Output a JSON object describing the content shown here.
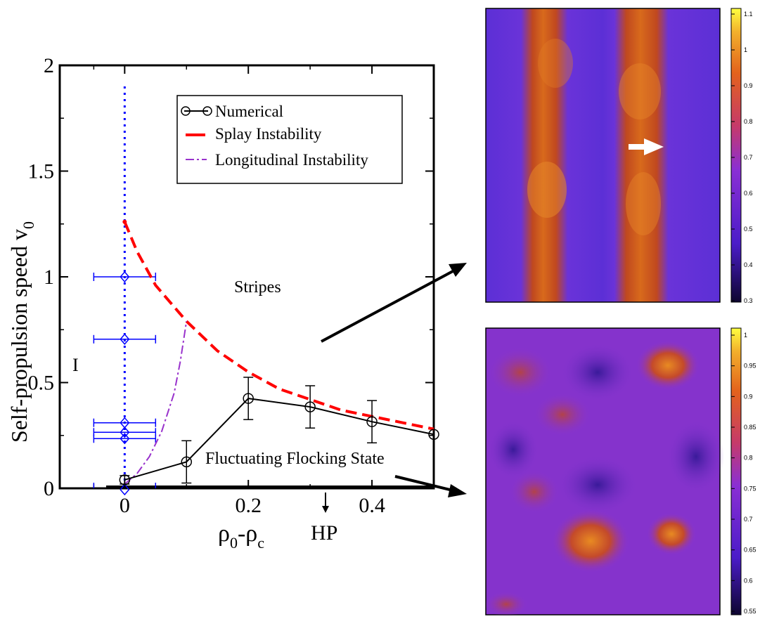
{
  "chart_data": [
    {
      "type": "line",
      "xlabel_main": "ρ",
      "xlabel_sub1": "0",
      "xlabel_minus": "-ρ",
      "xlabel_sub2": "c",
      "ylabel_main": "Self-propulsion speed v",
      "ylabel_sub": "0",
      "xlim": [
        -0.105,
        0.5
      ],
      "ylim": [
        0,
        2
      ],
      "x_ticks": [
        "0",
        "0.2",
        "0.4"
      ],
      "y_ticks": [
        "0",
        "0.5",
        "1",
        "1.5",
        "2"
      ],
      "series": [
        {
          "name": "Numerical",
          "color": "#000000",
          "marker": "circle",
          "x": [
            0,
            0.1,
            0.2,
            0.3,
            0.4,
            0.5
          ],
          "y": [
            0.04,
            0.125,
            0.425,
            0.385,
            0.315,
            0.255
          ],
          "yerr": [
            0.02,
            0.1,
            0.1,
            0.1,
            0.1,
            0.0
          ]
        },
        {
          "name": "Splay Instability",
          "color": "#ff0000",
          "style": "dashed",
          "x": [
            0,
            0.02,
            0.05,
            0.1,
            0.15,
            0.2,
            0.25,
            0.3,
            0.35,
            0.4,
            0.45,
            0.5
          ],
          "y": [
            1.26,
            1.12,
            0.96,
            0.79,
            0.65,
            0.55,
            0.47,
            0.42,
            0.37,
            0.34,
            0.31,
            0.28
          ]
        },
        {
          "name": "Longitudinal Instability",
          "color": "#9932cc",
          "style": "dashdot",
          "x": [
            0,
            0.02,
            0.04,
            0.06,
            0.08,
            0.09,
            0.1
          ],
          "y": [
            0.02,
            0.07,
            0.15,
            0.27,
            0.45,
            0.6,
            0.79
          ]
        },
        {
          "name": "",
          "color": "#0000ff",
          "marker": "diamond",
          "x": [
            0,
            0,
            0,
            0,
            0
          ],
          "y": [
            1.0,
            0.705,
            0.31,
            0.265,
            0.235
          ],
          "xerr": [
            0.05,
            0.05,
            0.05,
            0.05,
            0.05
          ]
        }
      ],
      "vertical_line": {
        "x": 0,
        "color": "#0000ff",
        "style": "dotted"
      },
      "annotations": {
        "stripes": "Stripes",
        "flocking": "Fluctuating Flocking State",
        "region_i": "I",
        "hp": "HP"
      },
      "legend_position": "top-right"
    },
    {
      "type": "heatmap",
      "pattern": "vertical stripes",
      "colorbar_ticks": [
        "1.1",
        "1",
        "0.9",
        "0.8",
        "0.7",
        "0.6",
        "0.5",
        "0.4",
        "0.3"
      ],
      "colormap": "gnuplot"
    },
    {
      "type": "heatmap",
      "pattern": "fluctuating flocking state",
      "colorbar_ticks": [
        "1",
        "0.95",
        "0.9",
        "0.85",
        "0.8",
        "0.75",
        "0.7",
        "0.65",
        "0.6",
        "0.55"
      ],
      "colormap": "gnuplot"
    }
  ]
}
